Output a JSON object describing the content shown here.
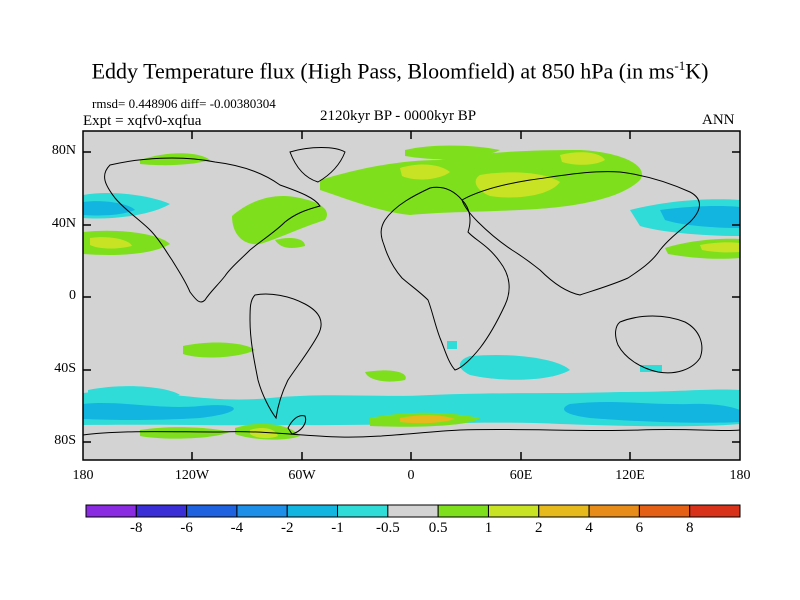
{
  "title": {
    "main": "Eddy Temperature flux (High Pass, Bloomfield) at 850 hPa (in ms",
    "sup": "-1",
    "tail": "K)"
  },
  "subtitle": {
    "stats": "rmsd= 0.448906 diff= -0.00380304",
    "expt": "Expt = xqfv0-xqfua",
    "period": "2120kyr BP - 0000kyr BP",
    "season": "ANN"
  },
  "map": {
    "projection": "cylindrical equidistant",
    "lat_range": [
      -90,
      90
    ],
    "lon_range": [
      -180,
      180
    ],
    "lat_ticks": [
      "80N",
      "40N",
      "0",
      "40S",
      "80S"
    ],
    "lon_ticks": [
      "180",
      "120W",
      "60W",
      "0",
      "60E",
      "120E",
      "180"
    ],
    "background_color": "#d3d3d3",
    "coastline_color": "#000000"
  },
  "colorbar": {
    "labels": [
      "-8",
      "-6",
      "-4",
      "-2",
      "-1",
      "-0.5",
      "0.5",
      "1",
      "2",
      "4",
      "6",
      "8"
    ],
    "colors": [
      "#8a2be2",
      "#3a2fd6",
      "#1f62df",
      "#1e8fe8",
      "#12b5e0",
      "#2fdcd8",
      "#d3d3d3",
      "#7ee01c",
      "#c8e324",
      "#e6b91c",
      "#e78b19",
      "#e46014",
      "#d9321b"
    ]
  }
}
